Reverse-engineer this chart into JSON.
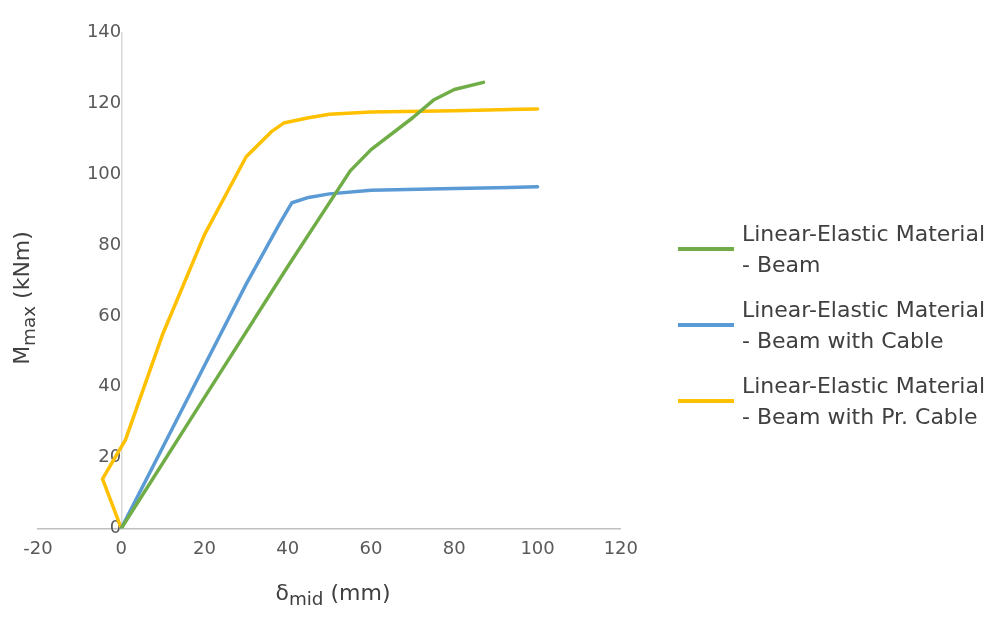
{
  "chart_data": {
    "type": "line",
    "xlabel": "δ$_{mid}$ (mm)",
    "ylabel": "M$_{max}$ (kNm)",
    "xlim": [
      -20,
      120
    ],
    "xticks": [
      -20,
      0,
      20,
      40,
      60,
      80,
      100,
      120
    ],
    "ylim": [
      0,
      140
    ],
    "yticks": [
      0,
      20,
      40,
      60,
      80,
      100,
      120,
      140
    ],
    "grid": false,
    "legend": "right",
    "marker": "none",
    "line_style": "solid",
    "series": [
      {
        "name": "Linear-Elastic Material - Beam",
        "color": "#70ad47",
        "x": [
          0,
          20,
          40,
          55,
          60,
          70,
          75,
          80,
          87
        ],
        "values": [
          0,
          37,
          74,
          101,
          107,
          116,
          121,
          124,
          126
        ]
      },
      {
        "name": "Linear-Elastic Material - Beam with Cable",
        "color": "#5b9bd5",
        "x": [
          0,
          10,
          20,
          30,
          38,
          41,
          45,
          50,
          60,
          80,
          100
        ],
        "values": [
          0,
          23,
          46,
          69,
          86,
          92,
          93.5,
          94.5,
          95.5,
          96,
          96.5
        ]
      },
      {
        "name": "Linear-Elastic Material - Beam with Pr. Cable",
        "color": "#ffc000",
        "x": [
          0,
          -4.5,
          1,
          10,
          20,
          30,
          36,
          39,
          45,
          50,
          60,
          80,
          100
        ],
        "values": [
          0,
          14,
          25,
          55,
          83,
          105,
          112,
          114.5,
          116,
          117,
          117.6,
          118,
          118.5
        ]
      }
    ]
  }
}
